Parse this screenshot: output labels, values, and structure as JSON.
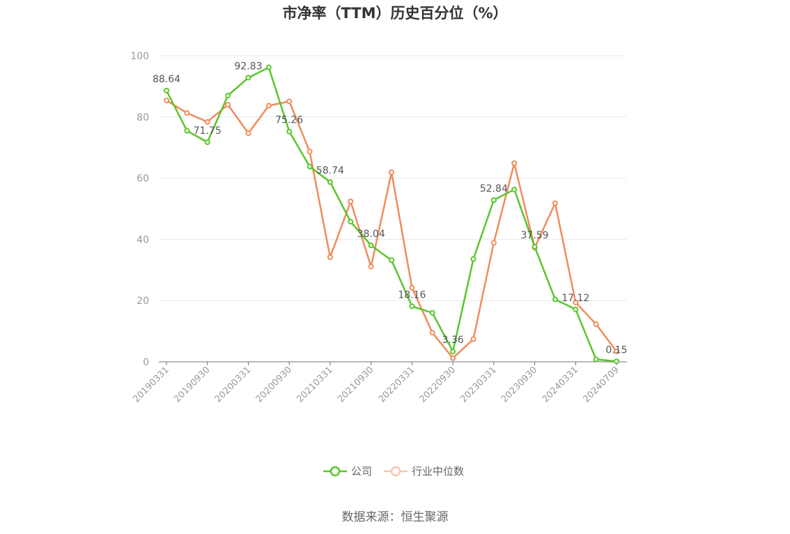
{
  "chart_data": {
    "type": "line",
    "title": "市净率（TTM）历史百分位（%）",
    "xlabel": "",
    "ylabel": "",
    "ylim": [
      0,
      100
    ],
    "yticks": [
      0,
      20,
      40,
      60,
      80,
      100
    ],
    "grid": true,
    "legend_position": "bottom",
    "x_tick_labels": [
      "20190331",
      "20190930",
      "20200331",
      "20200930",
      "20210331",
      "20210930",
      "20220331",
      "20220930",
      "20230331",
      "20230930",
      "20240331",
      "20240709"
    ],
    "series": [
      {
        "name": "公司",
        "color": "#5ac52b",
        "values": [
          88.64,
          75.5,
          71.75,
          87.0,
          92.83,
          96.2,
          75.26,
          63.8,
          58.74,
          45.8,
          38.04,
          33.2,
          18.16,
          16.0,
          3.36,
          33.6,
          52.84,
          56.3,
          37.59,
          20.4,
          17.12,
          0.8,
          0.15
        ],
        "data_labels": [
          "88.64",
          "",
          "71.75",
          "",
          "92.83",
          "",
          "75.26",
          "",
          "58.74",
          "",
          "38.04",
          "",
          "18.16",
          "",
          "3.36",
          "",
          "52.84",
          "",
          "37.59",
          "",
          "17.12",
          "",
          "0.15"
        ]
      },
      {
        "name": "行业中位数",
        "color": "#f08c5b",
        "values": [
          85.4,
          81.3,
          78.4,
          84.0,
          74.7,
          83.7,
          85.1,
          68.7,
          34.2,
          52.4,
          31.1,
          61.9,
          24.2,
          9.5,
          1.2,
          7.4,
          38.9,
          64.9,
          37.3,
          51.8,
          19.4,
          12.3,
          3.4
        ]
      }
    ],
    "legend_colors": {
      "company": "#5ac52b",
      "industry_faded": "#f8c6ae"
    }
  },
  "footer": {
    "source": "数据来源：恒生聚源"
  }
}
